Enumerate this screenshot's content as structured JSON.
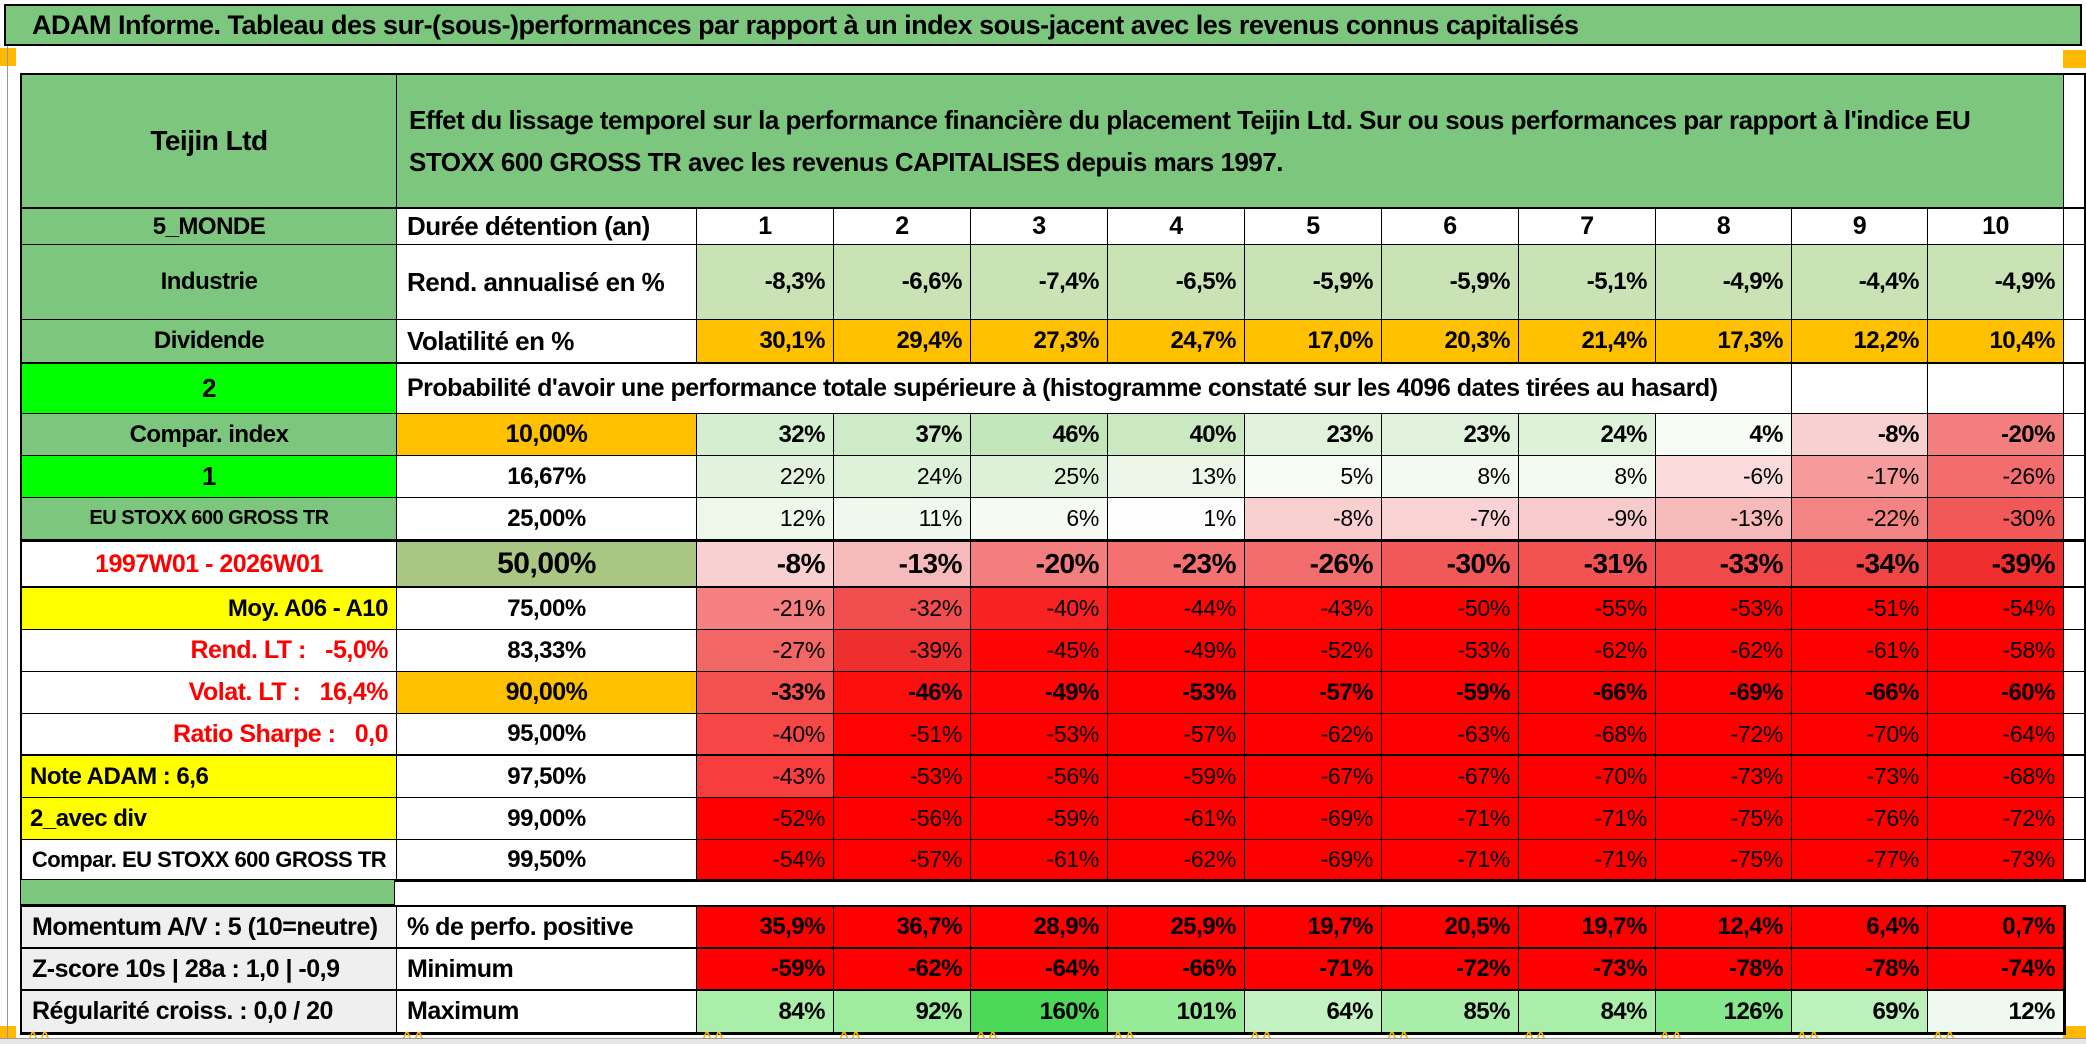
{
  "title": "ADAM Informe. Tableau des sur-(sous-)performances par rapport à un index sous-jacent avec les revenus connus capitalisés",
  "colors": {
    "header_green": "#7cc67e",
    "bright_green": "#00ff00",
    "orange": "#ffc000",
    "yellow": "#ffff00",
    "sage_green": "#a9c783",
    "row_light_green": "#c9e3b4",
    "cell_red": "#ff0000",
    "label_gray": "#efefef",
    "red_text": "#ff0000",
    "marker_orange": "#ffb900"
  },
  "table": {
    "rows": [
      {
        "kind": "header",
        "left": {
          "text": "Teijin Ltd"
        },
        "desc": "Effet du lissage temporel sur la performance financière du placement Teijin Ltd. Sur ou sous performances par rapport à l'indice EU STOXX 600 GROSS TR avec les revenus CAPITALISES depuis mars 1997."
      },
      {
        "kind": "duration",
        "left": {
          "text": "5_MONDE",
          "style": "green"
        },
        "mid": {
          "text": "Durée détention (an)"
        },
        "cells": {
          "values": [
            "1",
            "2",
            "3",
            "4",
            "5",
            "6",
            "7",
            "8",
            "9",
            "10"
          ]
        }
      },
      {
        "kind": "annualized",
        "left": {
          "text": "Industrie",
          "style": "green"
        },
        "mid": {
          "text": "Rend. annualisé en %"
        },
        "cells": {
          "values": [
            "-8,3%",
            "-6,6%",
            "-7,4%",
            "-6,5%",
            "-5,9%",
            "-5,9%",
            "-5,1%",
            "-4,9%",
            "-4,4%",
            "-4,9%"
          ],
          "bg": "#c9e3b4"
        }
      },
      {
        "kind": "volatility",
        "left": {
          "text": "Dividende",
          "style": "green"
        },
        "mid": {
          "text": "Volatilité en %"
        },
        "cells": {
          "values": [
            "30,1%",
            "29,4%",
            "27,3%",
            "24,7%",
            "17,0%",
            "20,3%",
            "21,4%",
            "17,3%",
            "12,2%",
            "10,4%"
          ],
          "bg": "#ffc000"
        }
      },
      {
        "kind": "span",
        "left": {
          "text": "2",
          "style": "bright",
          "comment": true
        },
        "span_text": "Probabilité d'avoir une performance totale supérieure à (histogramme constaté sur les 4096 dates tirées au hasard)"
      },
      {
        "kind": "prob",
        "bold": true,
        "left": {
          "text": "Compar. index",
          "style": "green"
        },
        "mid": {
          "text": "10,00%",
          "style": "orange"
        },
        "cells": {
          "values": [
            "32%",
            "37%",
            "46%",
            "40%",
            "23%",
            "23%",
            "24%",
            "4%",
            "-8%",
            "-20%"
          ],
          "colors": [
            "#d5eecf",
            "#ceebc7",
            "#c4e6bb",
            "#cae9c1",
            "#e0f2db",
            "#e0f2db",
            "#def2d9",
            "#f6fbf4",
            "#f8d0d0",
            "#f37e7e"
          ]
        }
      },
      {
        "kind": "prob",
        "left": {
          "text": "1",
          "style": "bright",
          "comment": true
        },
        "mid": {
          "text": "16,67%",
          "style": "plain"
        },
        "cells": {
          "values": [
            "22%",
            "24%",
            "25%",
            "13%",
            "5%",
            "8%",
            "8%",
            "-6%",
            "-17%",
            "-26%"
          ],
          "colors": [
            "#e1f3dc",
            "#def2d9",
            "#ddf1d8",
            "#ecf7e9",
            "#f6fbf4",
            "#f2faef",
            "#f2faef",
            "#fadada",
            "#f59b9b",
            "#f26d6d"
          ]
        }
      },
      {
        "kind": "prob",
        "left": {
          "text": "EU STOXX 600 GROSS TR",
          "style": "green-sm"
        },
        "mid": {
          "text": "25,00%",
          "style": "plain"
        },
        "cells": {
          "values": [
            "12%",
            "11%",
            "6%",
            "1%",
            "-8%",
            "-7%",
            "-9%",
            "-13%",
            "-22%",
            "-30%"
          ],
          "colors": [
            "#edf8ea",
            "#eff8ec",
            "#f5fbf3",
            "#fdfefd",
            "#f8d0d0",
            "#f9d3d3",
            "#f7cbcb",
            "#f6baba",
            "#f48383",
            "#f15858"
          ]
        }
      },
      {
        "kind": "prob-big",
        "left": {
          "text": "1997W01 - 2026W01",
          "style": "red-center"
        },
        "mid": {
          "text": "50,00%",
          "style": "sage"
        },
        "cells": {
          "values": [
            "-8%",
            "-13%",
            "-20%",
            "-23%",
            "-26%",
            "-30%",
            "-31%",
            "-33%",
            "-34%",
            "-39%"
          ],
          "colors": [
            "#f8d0d0",
            "#f6baba",
            "#f37e7e",
            "#f37171",
            "#f26d6d",
            "#f15858",
            "#f15353",
            "#f04949",
            "#f04545",
            "#ef2e2e"
          ]
        }
      },
      {
        "kind": "prob",
        "left": {
          "text": "Moy. A06 - A10",
          "style": "yellow-right"
        },
        "mid": {
          "text": "75,00%",
          "style": "plain"
        },
        "cells": {
          "values": [
            "-21%",
            "-32%",
            "-40%",
            "-44%",
            "-43%",
            "-50%",
            "-55%",
            "-53%",
            "-51%",
            "-54%"
          ],
          "colors": [
            "#f48080",
            "#f04e4e",
            "#f92222",
            "#ff0606",
            "#ff0909",
            "#ff0000",
            "#ff0000",
            "#ff0000",
            "#ff0000",
            "#ff0000"
          ]
        }
      },
      {
        "kind": "prob",
        "left": {
          "text": "Rend. LT :   -5,0%",
          "style": "red-right"
        },
        "mid": {
          "text": "83,33%",
          "style": "plain"
        },
        "cells": {
          "values": [
            "-27%",
            "-39%",
            "-45%",
            "-49%",
            "-52%",
            "-53%",
            "-62%",
            "-62%",
            "-61%",
            "-58%"
          ],
          "colors": [
            "#f26666",
            "#ef2e2e",
            "#fe0404",
            "#ff0000",
            "#ff0000",
            "#ff0000",
            "#ff0000",
            "#ff0000",
            "#ff0000",
            "#ff0000"
          ]
        }
      },
      {
        "kind": "prob",
        "bold": true,
        "left": {
          "text": "Volat. LT :   16,4%",
          "style": "red-right"
        },
        "mid": {
          "text": "90,00%",
          "style": "orange"
        },
        "cells": {
          "values": [
            "-33%",
            "-46%",
            "-49%",
            "-53%",
            "-57%",
            "-59%",
            "-66%",
            "-69%",
            "-66%",
            "-60%"
          ],
          "colors": [
            "#f35050",
            "#fc0f0f",
            "#ff0404",
            "#ff0000",
            "#ff0000",
            "#ff0000",
            "#ff0000",
            "#ff0000",
            "#ff0000",
            "#ff0000"
          ]
        }
      },
      {
        "kind": "prob",
        "left": {
          "text": "Ratio Sharpe :   0,0",
          "style": "red-right"
        },
        "mid": {
          "text": "95,00%",
          "style": "plain"
        },
        "cells": {
          "values": [
            "-40%",
            "-51%",
            "-53%",
            "-57%",
            "-62%",
            "-63%",
            "-68%",
            "-72%",
            "-70%",
            "-64%"
          ],
          "colors": [
            "#f64646",
            "#ff0202",
            "#ff0000",
            "#ff0000",
            "#ff0000",
            "#ff0000",
            "#ff0000",
            "#ff0000",
            "#ff0000",
            "#ff0000"
          ]
        }
      },
      {
        "kind": "prob",
        "left": {
          "text": "Note ADAM : 6,6",
          "style": "yellow-left"
        },
        "mid": {
          "text": "97,50%",
          "style": "plain"
        },
        "cells": {
          "values": [
            "-43%",
            "-53%",
            "-56%",
            "-59%",
            "-67%",
            "-67%",
            "-70%",
            "-73%",
            "-73%",
            "-68%"
          ],
          "colors": [
            "#f73d3d",
            "#ff0101",
            "#ff0000",
            "#ff0000",
            "#ff0000",
            "#ff0000",
            "#ff0000",
            "#ff0000",
            "#ff0000",
            "#ff0000"
          ]
        }
      },
      {
        "kind": "prob",
        "left": {
          "text": "2_avec div",
          "style": "yellow-left"
        },
        "mid": {
          "text": "99,00%",
          "style": "plain"
        },
        "cells": {
          "values": [
            "-52%",
            "-56%",
            "-59%",
            "-61%",
            "-69%",
            "-71%",
            "-71%",
            "-75%",
            "-76%",
            "-72%"
          ],
          "colors": [
            "#ff0000",
            "#ff0000",
            "#ff0000",
            "#ff0000",
            "#ff0000",
            "#ff0000",
            "#ff0000",
            "#ff0000",
            "#ff0000",
            "#ff0000"
          ]
        }
      },
      {
        "kind": "prob-last",
        "left": {
          "text": "Compar. EU STOXX 600 GROSS TR",
          "style": "white-center"
        },
        "mid": {
          "text": "99,50%",
          "style": "plain"
        },
        "cells": {
          "values": [
            "-54%",
            "-57%",
            "-61%",
            "-62%",
            "-69%",
            "-71%",
            "-71%",
            "-75%",
            "-77%",
            "-73%"
          ],
          "colors": [
            "#ff0000",
            "#ff0000",
            "#ff0000",
            "#ff0000",
            "#ff0000",
            "#ff0000",
            "#ff0000",
            "#ff0000",
            "#ff0000",
            "#ff0000"
          ]
        }
      }
    ]
  },
  "bottom": {
    "rows": [
      {
        "left": "Momentum A/V : 5 (10=neutre)",
        "mid": "% de perfo. positive",
        "values": [
          "35,9%",
          "36,7%",
          "28,9%",
          "25,9%",
          "19,7%",
          "20,5%",
          "19,7%",
          "12,4%",
          "6,4%",
          "0,7%"
        ],
        "bg": "#ff0000"
      },
      {
        "left": "Z-score 10s | 28a : 1,0 | -0,9",
        "mid": "Minimum",
        "values": [
          "-59%",
          "-62%",
          "-64%",
          "-66%",
          "-71%",
          "-72%",
          "-73%",
          "-78%",
          "-78%",
          "-74%"
        ],
        "bg": "#ff0000"
      },
      {
        "left": "Régularité croiss. : 0,0 / 20",
        "mid": "Maximum",
        "values": [
          "84%",
          "92%",
          "160%",
          "101%",
          "64%",
          "85%",
          "84%",
          "126%",
          "69%",
          "12%"
        ],
        "colors": [
          "#a9efa9",
          "#9eec9e",
          "#4cd95a",
          "#97ea97",
          "#c3f3c3",
          "#a8eea8",
          "#a9efa9",
          "#84e78c",
          "#bcf1bc",
          "#eff9ef"
        ]
      }
    ]
  },
  "cut_marks_glyph": "^^"
}
